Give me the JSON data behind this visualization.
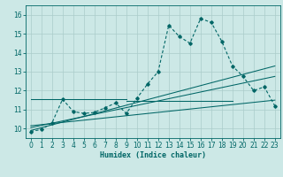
{
  "xlabel": "Humidex (Indice chaleur)",
  "bg_color": "#cce8e6",
  "line_color": "#006666",
  "grid_color": "#aaccca",
  "xlim": [
    -0.5,
    23.5
  ],
  "ylim": [
    9.5,
    16.5
  ],
  "xticks": [
    0,
    1,
    2,
    3,
    4,
    5,
    6,
    7,
    8,
    9,
    10,
    11,
    12,
    13,
    14,
    15,
    16,
    17,
    18,
    19,
    20,
    21,
    22,
    23
  ],
  "yticks": [
    10,
    11,
    12,
    13,
    14,
    15,
    16
  ],
  "main_x": [
    0,
    1,
    2,
    3,
    4,
    5,
    6,
    7,
    8,
    9,
    10,
    11,
    12,
    13,
    14,
    15,
    16,
    17,
    18,
    19,
    20,
    21,
    22,
    23
  ],
  "main_y": [
    9.85,
    9.95,
    10.3,
    11.55,
    10.9,
    10.8,
    10.85,
    11.1,
    11.35,
    10.8,
    11.6,
    12.35,
    13.0,
    15.45,
    14.85,
    14.5,
    15.8,
    15.6,
    14.6,
    13.3,
    12.75,
    12.0,
    12.2,
    11.2
  ],
  "trend_lines": [
    {
      "x": [
        0,
        23
      ],
      "y": [
        9.9,
        13.3
      ]
    },
    {
      "x": [
        0,
        23
      ],
      "y": [
        10.05,
        12.75
      ]
    },
    {
      "x": [
        0,
        23
      ],
      "y": [
        10.15,
        11.5
      ]
    },
    {
      "x": [
        0,
        9
      ],
      "y": [
        11.55,
        11.55
      ]
    },
    {
      "x": [
        9,
        19
      ],
      "y": [
        11.45,
        11.45
      ]
    }
  ]
}
